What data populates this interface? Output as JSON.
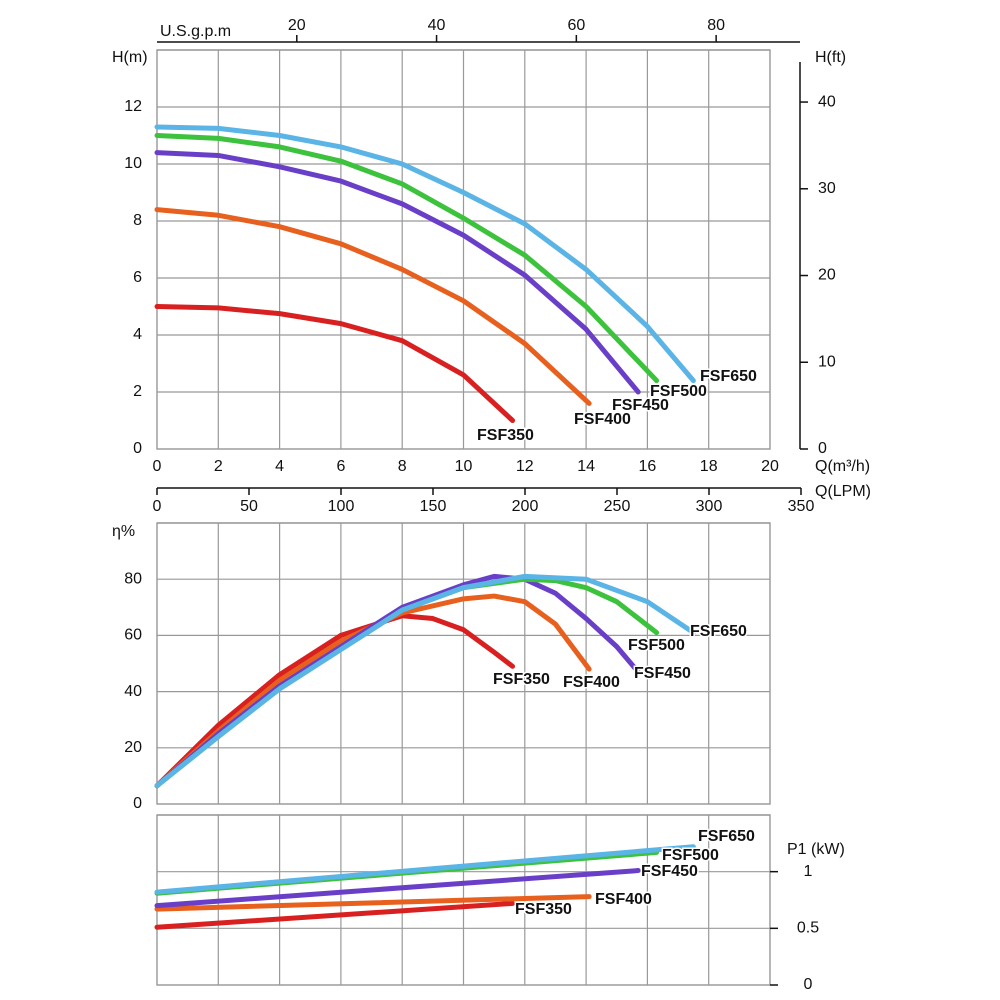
{
  "chart_data": [
    {
      "type": "line",
      "ylabel": "H(m)",
      "xlabel": "Q(m³/h)",
      "xlim": [
        0,
        20
      ],
      "xticks": [
        0,
        2,
        4,
        6,
        8,
        10,
        12,
        14,
        16,
        18,
        20
      ],
      "ylim": [
        0,
        14
      ],
      "yticks": [
        0,
        2,
        4,
        6,
        8,
        10,
        12
      ],
      "y2label": "H(ft)",
      "y2lim": [
        0,
        46
      ],
      "y2ticks": [
        0,
        10,
        20,
        30,
        40
      ],
      "top_axis": {
        "label": "U.S.g.p.m",
        "lim": [
          0,
          92
        ],
        "ticks": [
          20,
          40,
          60,
          80
        ]
      },
      "bottom_axis": {
        "label": "Q(LPM)",
        "lim": [
          0,
          350
        ],
        "ticks": [
          0,
          50,
          100,
          150,
          200,
          250,
          300,
          350
        ]
      },
      "grid": true,
      "series": [
        {
          "name": "FSF650",
          "color": "#5ab4e6",
          "x": [
            0,
            2,
            4,
            6,
            8,
            10,
            12,
            14,
            16,
            17.5
          ],
          "values": [
            11.3,
            11.25,
            11.0,
            10.6,
            10.0,
            9.0,
            7.9,
            6.3,
            4.3,
            2.4
          ]
        },
        {
          "name": "FSF500",
          "color": "#3cc23c",
          "x": [
            0,
            2,
            4,
            6,
            8,
            10,
            12,
            14,
            16.3
          ],
          "values": [
            11.0,
            10.9,
            10.6,
            10.1,
            9.3,
            8.1,
            6.8,
            5.0,
            2.4
          ]
        },
        {
          "name": "FSF450",
          "color": "#6a3fc8",
          "x": [
            0,
            2,
            4,
            6,
            8,
            10,
            12,
            14,
            15.7
          ],
          "values": [
            10.4,
            10.3,
            9.9,
            9.4,
            8.6,
            7.5,
            6.1,
            4.2,
            2.0
          ]
        },
        {
          "name": "FSF400",
          "color": "#e8601e",
          "x": [
            0,
            2,
            4,
            6,
            8,
            10,
            12,
            14.1
          ],
          "values": [
            8.4,
            8.2,
            7.8,
            7.2,
            6.3,
            5.2,
            3.7,
            1.6
          ]
        },
        {
          "name": "FSF350",
          "color": "#d92020",
          "x": [
            0,
            2,
            4,
            6,
            8,
            10,
            11.6
          ],
          "values": [
            5.0,
            4.95,
            4.75,
            4.4,
            3.8,
            2.6,
            1.0
          ]
        }
      ]
    },
    {
      "type": "line",
      "ylabel": "η%",
      "ylim": [
        0,
        100
      ],
      "yticks": [
        0,
        20,
        40,
        60,
        80
      ],
      "grid": true,
      "series": [
        {
          "name": "FSF650",
          "color": "#5ab4e6",
          "x": [
            0,
            2,
            4,
            6,
            8,
            10,
            12,
            14,
            16,
            17.5
          ],
          "values": [
            6.5,
            24,
            41,
            55,
            69,
            77,
            81,
            80,
            72,
            61
          ]
        },
        {
          "name": "FSF500",
          "color": "#3cc23c",
          "x": [
            0,
            2,
            4,
            6,
            8,
            10,
            12,
            13,
            14,
            15,
            16.3
          ],
          "values": [
            6.5,
            24,
            41,
            55,
            69,
            77,
            80,
            79.5,
            77,
            72,
            61
          ]
        },
        {
          "name": "FSF450",
          "color": "#6a3fc8",
          "x": [
            0,
            2,
            4,
            6,
            8,
            10,
            11,
            12,
            13,
            14,
            15,
            15.7
          ],
          "values": [
            6.5,
            25,
            42,
            56,
            70,
            78,
            81,
            80,
            75,
            66,
            56,
            47
          ]
        },
        {
          "name": "FSF400",
          "color": "#e8601e",
          "x": [
            0,
            2,
            4,
            6,
            8,
            10,
            11,
            12,
            13,
            14.1
          ],
          "values": [
            6.5,
            26,
            44,
            58,
            68,
            73,
            74,
            72,
            64,
            48
          ]
        },
        {
          "name": "FSF350",
          "color": "#d92020",
          "x": [
            0,
            2,
            4,
            6,
            8,
            9,
            10,
            11,
            11.6
          ],
          "values": [
            6.5,
            28,
            46,
            60,
            67,
            66,
            62,
            54,
            49
          ]
        }
      ]
    },
    {
      "type": "line",
      "ylabel": "P1 (kW)",
      "yaxis_side": "right",
      "ylim": [
        0,
        1.5
      ],
      "yticks": [
        0,
        0.5,
        1
      ],
      "grid": true,
      "series": [
        {
          "name": "FSF650",
          "color": "#5ab4e6",
          "x": [
            0,
            17.5
          ],
          "values": [
            0.82,
            1.22
          ]
        },
        {
          "name": "FSF500",
          "color": "#3cc23c",
          "x": [
            0,
            16.3
          ],
          "values": [
            0.81,
            1.17
          ]
        },
        {
          "name": "FSF450",
          "color": "#6a3fc8",
          "x": [
            0,
            15.7
          ],
          "values": [
            0.7,
            1.01
          ]
        },
        {
          "name": "FSF400",
          "color": "#e8601e",
          "x": [
            0,
            14.1
          ],
          "values": [
            0.67,
            0.78
          ]
        },
        {
          "name": "FSF350",
          "color": "#d92020",
          "x": [
            0,
            11.6
          ],
          "values": [
            0.51,
            0.72
          ]
        }
      ]
    }
  ]
}
